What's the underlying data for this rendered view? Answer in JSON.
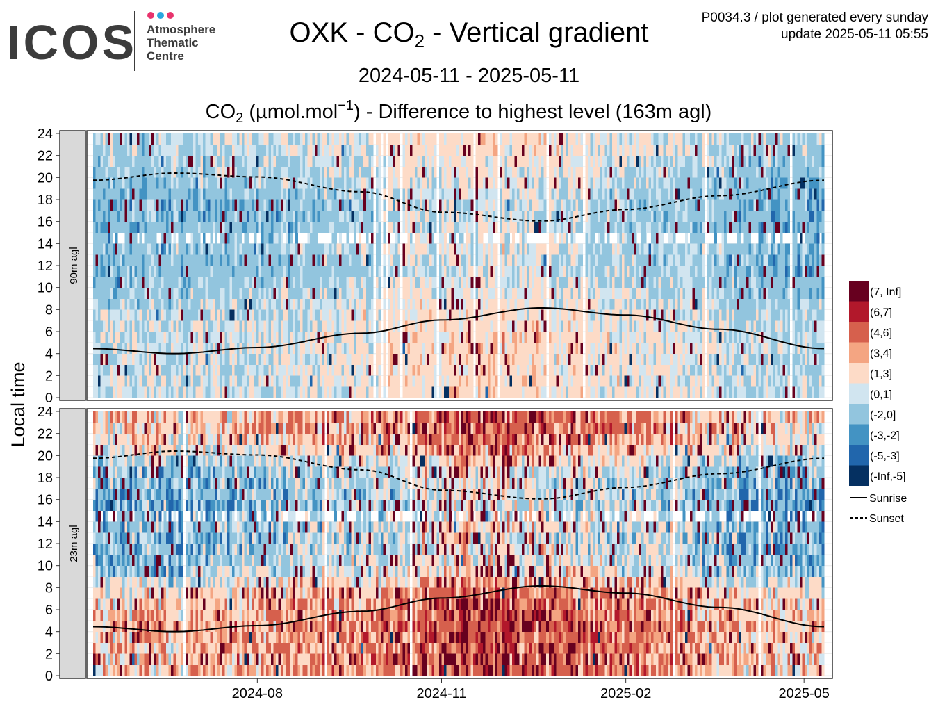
{
  "logo": {
    "word": "ICOS",
    "line1": "Atmosphere",
    "line2": "Thematic",
    "line3": "Centre"
  },
  "header": {
    "title_pre": "OXK - CO",
    "title_sub": "2",
    "title_post": " - Vertical gradient",
    "date_range": "2024-05-11 - 2025-05-11",
    "subtitle_pre": "CO",
    "subtitle_sub": "2",
    "subtitle_mid": " (µmol.mol",
    "subtitle_sup": "−1",
    "subtitle_post": ") - Difference to highest level (163m agl)",
    "info_line1": "P0034.3 / plot generated every sunday",
    "info_line2": "update  2025-05-11 05:55"
  },
  "chart_data": {
    "type": "heatmap",
    "x_start": "2024-05-11",
    "x_end": "2025-05-11",
    "x_ticks": [
      "2024-08",
      "2024-11",
      "2025-02",
      "2025-05"
    ],
    "x_tick_dates": [
      "2024-08-01",
      "2024-11-01",
      "2025-02-01",
      "2025-05-01"
    ],
    "ylabel": "Local time",
    "ylim": [
      0,
      24
    ],
    "y_ticks": [
      0,
      2,
      4,
      6,
      8,
      10,
      12,
      14,
      16,
      18,
      20,
      22,
      24
    ],
    "panels": [
      {
        "label": "90m agl",
        "profile": [
          0.6,
          0.7,
          0.7,
          0.8,
          0.9,
          0.8,
          0.6,
          0.4,
          0.2,
          -0.2,
          -0.6,
          -0.8,
          -0.8,
          -0.4,
          -0.7,
          -1.0,
          -1.0,
          -0.9,
          -0.8,
          -0.5,
          -0.2,
          0.0,
          0.2,
          0.4
        ],
        "seasonal_shift": [
          -0.5,
          -0.3,
          0.0,
          0.6,
          1.6,
          1.2,
          0.3,
          -0.3,
          -0.6
        ],
        "spread": 1.4,
        "extreme_rate": 0.03
      },
      {
        "label": "23m agl",
        "profile": [
          3.0,
          3.2,
          3.3,
          3.4,
          3.4,
          3.2,
          2.8,
          2.2,
          1.2,
          0.0,
          -0.8,
          -1.0,
          -1.0,
          -0.6,
          -1.0,
          -1.3,
          -1.3,
          -1.1,
          -0.9,
          0.3,
          1.5,
          2.2,
          2.6,
          2.8
        ],
        "seasonal_shift": [
          -0.4,
          -0.2,
          0.2,
          1.0,
          2.8,
          2.0,
          0.8,
          0.0,
          -0.5
        ],
        "spread": 2.2,
        "extreme_rate": 0.06
      }
    ],
    "legend": [
      {
        "label": "(7, Inf]",
        "color": "#67001f"
      },
      {
        "label": "(6,7]",
        "color": "#b2182b"
      },
      {
        "label": "(4,6]",
        "color": "#d6604d"
      },
      {
        "label": "(3,4]",
        "color": "#f4a582"
      },
      {
        "label": "(1,3]",
        "color": "#fddbc7"
      },
      {
        "label": "(0,1]",
        "color": "#d1e5f0"
      },
      {
        "label": "(-2,0]",
        "color": "#92c5de"
      },
      {
        "label": "(-3,-2]",
        "color": "#4393c3"
      },
      {
        "label": "(-5,-3]",
        "color": "#2166ac"
      },
      {
        "label": "(-Inf,-5]",
        "color": "#053061"
      }
    ],
    "bins": [
      7,
      6,
      4,
      3,
      1,
      0,
      -2,
      -3,
      -5
    ],
    "lines": [
      {
        "name": "Sunrise",
        "style": "solid",
        "dates": [
          "2024-05-11",
          "2024-06-21",
          "2024-08-01",
          "2024-09-22",
          "2024-11-01",
          "2024-12-21",
          "2025-02-01",
          "2025-03-20",
          "2025-05-11"
        ],
        "hours": [
          4.45,
          4.0,
          4.55,
          5.85,
          7.05,
          8.15,
          7.5,
          6.2,
          4.45
        ]
      },
      {
        "name": "Sunset",
        "style": "dashed",
        "dates": [
          "2024-05-11",
          "2024-06-21",
          "2024-08-01",
          "2024-09-22",
          "2024-11-01",
          "2024-12-21",
          "2025-02-01",
          "2025-03-20",
          "2025-05-11"
        ],
        "hours": [
          19.75,
          20.4,
          20.05,
          18.7,
          16.85,
          16.05,
          17.1,
          18.35,
          19.75
        ]
      }
    ],
    "grid": true,
    "legend_position": "right"
  }
}
